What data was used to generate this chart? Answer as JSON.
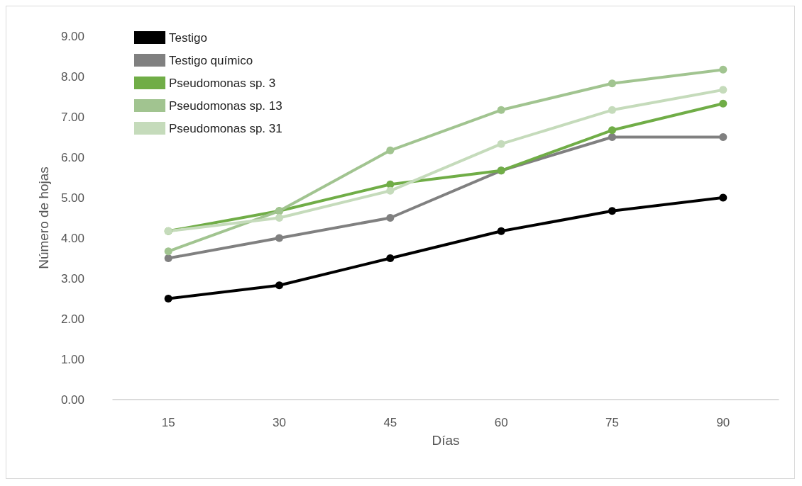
{
  "chart_data": {
    "type": "line",
    "xlabel": "Días",
    "ylabel": "Número de hojas",
    "categories": [
      "15",
      "30",
      "45",
      "60",
      "75",
      "90"
    ],
    "series": [
      {
        "name": "Testigo",
        "color": "#000000",
        "values": [
          2.5,
          2.83,
          3.5,
          4.17,
          4.67,
          5.0
        ]
      },
      {
        "name": "Testigo químico",
        "color": "#808080",
        "values": [
          3.5,
          4.0,
          4.5,
          5.67,
          6.5,
          6.5
        ]
      },
      {
        "name": "Pseudomonas sp. 3",
        "color": "#70ad47",
        "values": [
          4.17,
          4.67,
          5.33,
          5.67,
          6.67,
          7.33
        ]
      },
      {
        "name": "Pseudomonas sp. 13",
        "color": "#a1c490",
        "values": [
          3.67,
          4.67,
          6.17,
          7.17,
          7.83,
          8.17
        ]
      },
      {
        "name": "Pseudomonas sp. 31",
        "color": "#c5dbbb",
        "values": [
          4.17,
          4.5,
          5.17,
          6.33,
          7.17,
          7.67
        ]
      }
    ],
    "ylim": [
      0,
      9
    ],
    "yticks": [
      {
        "value": 0,
        "label": "0.00"
      },
      {
        "value": 1,
        "label": "1.00"
      },
      {
        "value": 2,
        "label": "2.00"
      },
      {
        "value": 3,
        "label": "3.00"
      },
      {
        "value": 4,
        "label": "4.00"
      },
      {
        "value": 5,
        "label": "5.00"
      },
      {
        "value": 6,
        "label": "6.00"
      },
      {
        "value": 7,
        "label": "7.00"
      },
      {
        "value": 8,
        "label": "8.00"
      },
      {
        "value": 9,
        "label": "9.00"
      }
    ],
    "grid": false,
    "legend": "top left",
    "marker": "circle",
    "line_style": "solid"
  }
}
